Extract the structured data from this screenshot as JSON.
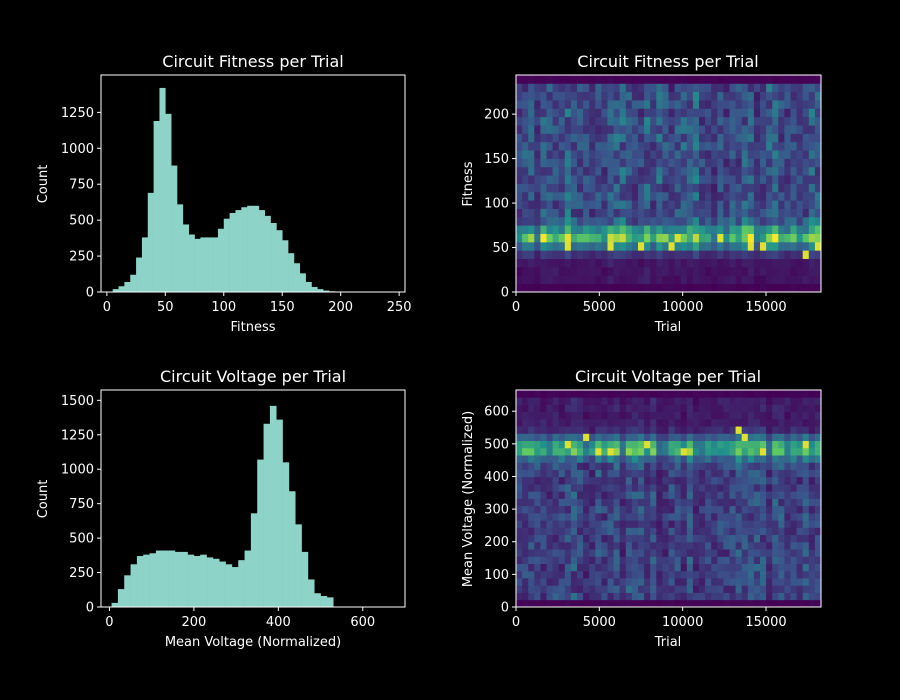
{
  "colors": {
    "background": "#000000",
    "foreground": "#ffffff",
    "hist_fill": "#8dd3c7"
  },
  "chart_data": [
    {
      "id": "fitness-hist",
      "type": "bar",
      "title": "Circuit Fitness per Trial",
      "xlabel": "Fitness",
      "ylabel": "Count",
      "xlim": [
        -5,
        255
      ],
      "ylim": [
        0,
        1510
      ],
      "xticks": [
        0,
        50,
        100,
        150,
        200,
        250
      ],
      "yticks": [
        0,
        250,
        500,
        750,
        1000,
        1250
      ],
      "bin_start": 5,
      "bin_width": 5,
      "values": [
        20,
        40,
        70,
        120,
        240,
        380,
        690,
        1190,
        1420,
        1240,
        880,
        610,
        470,
        400,
        370,
        380,
        380,
        380,
        440,
        510,
        550,
        570,
        590,
        600,
        600,
        570,
        530,
        480,
        430,
        360,
        270,
        200,
        130,
        70,
        35,
        20,
        10,
        5
      ]
    },
    {
      "id": "fitness-heatmap",
      "type": "heatmap",
      "title": "Circuit Fitness per Trial",
      "xlabel": "Trial",
      "ylabel": "Fitness",
      "xlim": [
        0,
        18300
      ],
      "ylim": [
        0,
        244
      ],
      "xticks": [
        0,
        5000,
        10000,
        15000
      ],
      "yticks": [
        0,
        50,
        100,
        150,
        200
      ],
      "cols": 50,
      "rows": 26,
      "band_center": 55,
      "hot_cells": [
        [
          8,
          5
        ],
        [
          15,
          5
        ],
        [
          20,
          5
        ],
        [
          25,
          5
        ],
        [
          33,
          6
        ],
        [
          38,
          5
        ],
        [
          40,
          5
        ],
        [
          47,
          4
        ],
        [
          49,
          5
        ]
      ]
    },
    {
      "id": "voltage-hist",
      "type": "bar",
      "title": "Circuit Voltage per Trial",
      "xlabel": "Mean Voltage (Normalized)",
      "ylabel": "Count",
      "xlim": [
        -20,
        700
      ],
      "ylim": [
        0,
        1575
      ],
      "xticks": [
        0,
        200,
        400,
        600
      ],
      "yticks": [
        0,
        250,
        500,
        750,
        1000,
        1250,
        1500
      ],
      "bin_start": 5,
      "bin_width": 15,
      "values": [
        30,
        130,
        230,
        310,
        370,
        380,
        390,
        410,
        410,
        410,
        400,
        400,
        380,
        370,
        380,
        360,
        350,
        330,
        310,
        290,
        340,
        410,
        680,
        1070,
        1330,
        1460,
        1360,
        1050,
        840,
        600,
        400,
        200,
        100,
        80,
        70
      ]
    },
    {
      "id": "voltage-heatmap",
      "type": "heatmap",
      "title": "Circuit Voltage per Trial",
      "xlabel": "Trial",
      "ylabel": "Mean Voltage (Normalized)",
      "xlim": [
        0,
        18300
      ],
      "ylim": [
        0,
        665
      ],
      "xticks": [
        0,
        5000,
        10000,
        15000
      ],
      "yticks": [
        0,
        100,
        200,
        300,
        400,
        500,
        600
      ],
      "cols": 50,
      "rows": 30,
      "band_center": 480,
      "hot_cells": [
        [
          8,
          22
        ],
        [
          11,
          23
        ],
        [
          13,
          21
        ],
        [
          15,
          21
        ],
        [
          21,
          22
        ],
        [
          27,
          21
        ],
        [
          36,
          24
        ],
        [
          37,
          23
        ],
        [
          40,
          21
        ],
        [
          47,
          22
        ]
      ]
    }
  ]
}
